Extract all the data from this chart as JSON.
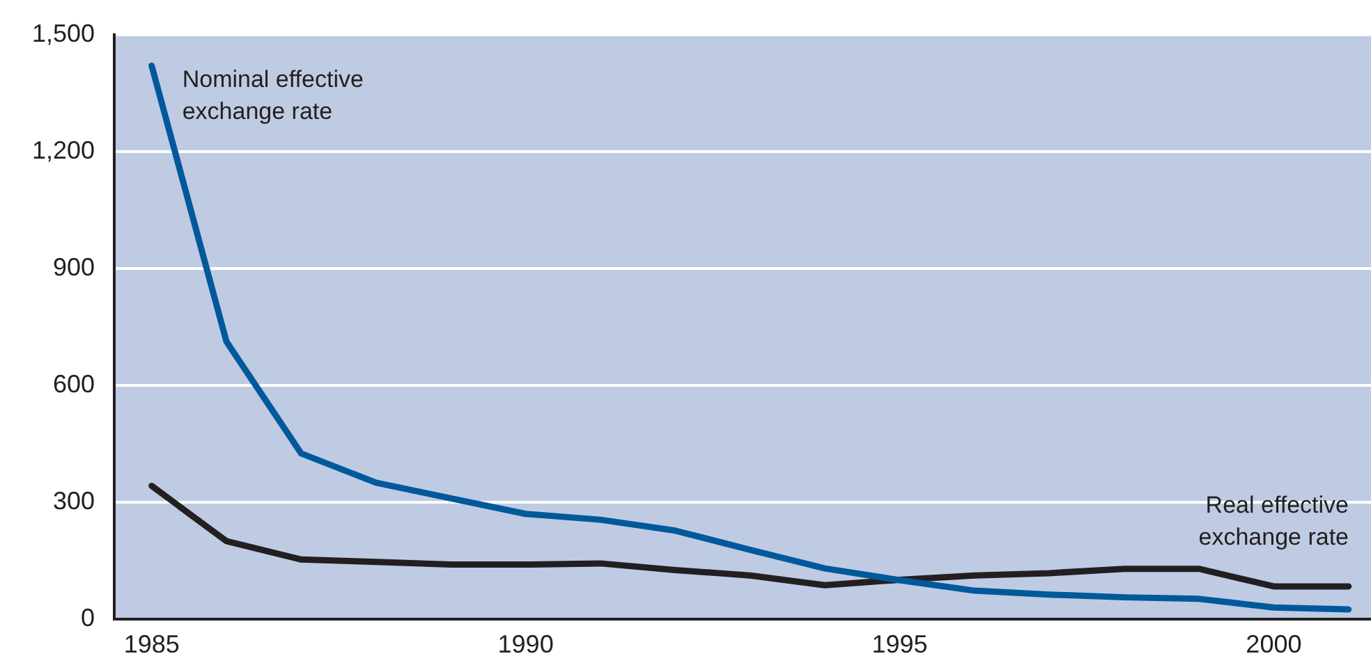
{
  "chart_data": {
    "type": "line",
    "x": [
      1985,
      1986,
      1987,
      1988,
      1989,
      1990,
      1991,
      1992,
      1993,
      1994,
      1995,
      1996,
      1997,
      1998,
      1999,
      2000,
      2001
    ],
    "series": [
      {
        "name": "Nominal effective exchange rate",
        "color": "#00599a",
        "values": [
          1420,
          712,
          425,
          350,
          310,
          270,
          255,
          227,
          178,
          130,
          100,
          73,
          63,
          56,
          52,
          30,
          25
        ]
      },
      {
        "name": "Real effective exchange rate",
        "color": "#231f20",
        "values": [
          342,
          200,
          153,
          147,
          140,
          140,
          143,
          126,
          112,
          87,
          101,
          112,
          118,
          129,
          129,
          84,
          84
        ]
      }
    ],
    "xlim": [
      1984.5,
      2001.3
    ],
    "xticks": [
      1985,
      1990,
      1995,
      2000
    ],
    "ylim": [
      0,
      1500
    ],
    "yticks": [
      0,
      300,
      600,
      900,
      {
        "value": 1200,
        "label": "1,200"
      },
      {
        "value": 1500,
        "label": "1,500"
      }
    ],
    "grid": "y",
    "legend": false,
    "marker": "none",
    "line_style": "solid"
  }
}
